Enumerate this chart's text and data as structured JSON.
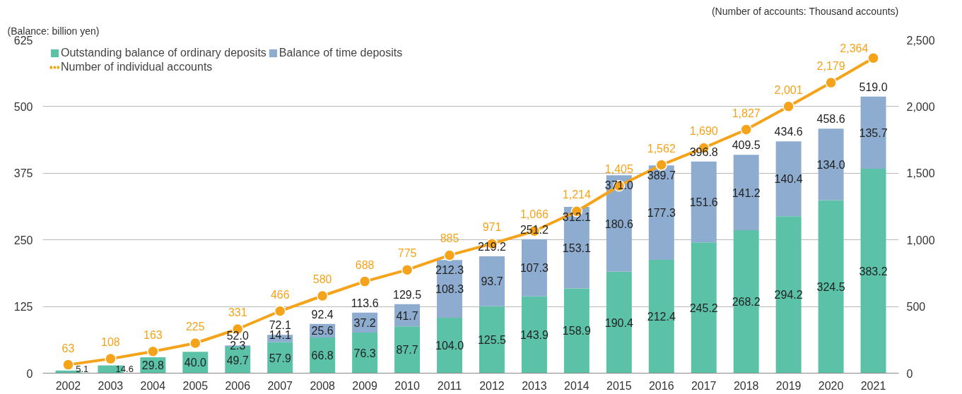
{
  "chart_data": {
    "type": "bar",
    "stacked": true,
    "categories": [
      "2002",
      "2003",
      "2004",
      "2005",
      "2006",
      "2007",
      "2008",
      "2009",
      "2010",
      "2011",
      "2012",
      "2013",
      "2014",
      "2015",
      "2016",
      "2017",
      "2018",
      "2019",
      "2020",
      "2021"
    ],
    "series": [
      {
        "name": "Outstanding balance of ordinary deposits",
        "color": "#5bc2a8",
        "values": [
          5.1,
          14.6,
          29.8,
          40.0,
          49.7,
          57.9,
          66.8,
          76.3,
          87.7,
          104.0,
          125.5,
          143.9,
          158.9,
          190.4,
          212.4,
          245.2,
          268.2,
          294.2,
          324.5,
          383.2
        ],
        "value_labels": [
          "5.1",
          "14.6",
          "29.8",
          "40.0",
          "49.7",
          "57.9",
          "66.8",
          "76.3",
          "87.7",
          "104.0",
          "125.5",
          "143.9",
          "158.9",
          "190.4",
          "212.4",
          "245.2",
          "268.2",
          "294.2",
          "324.5",
          "383.2"
        ]
      },
      {
        "name": "Balance of time deposits",
        "color": "#8eaccf",
        "values": [
          null,
          null,
          null,
          null,
          2.3,
          14.1,
          25.6,
          37.2,
          41.7,
          108.3,
          93.7,
          107.3,
          153.1,
          180.6,
          177.3,
          151.6,
          141.2,
          140.4,
          134.0,
          135.7
        ],
        "value_labels": [
          null,
          null,
          null,
          null,
          "2.3",
          "14.1",
          "25.6",
          "37.2",
          "41.7",
          "108.3",
          "93.7",
          "107.3",
          "153.1",
          "180.6",
          "177.3",
          "151.6",
          "141.2",
          "140.4",
          "134.0",
          "135.7"
        ]
      },
      {
        "name": "Number of individual accounts",
        "type": "line",
        "axis": "y2",
        "color": "#f5a31a",
        "marker": "circle",
        "values": [
          63,
          108,
          163,
          225,
          331,
          466,
          580,
          688,
          775,
          885,
          971,
          1066,
          1214,
          1405,
          1562,
          1690,
          1827,
          2001,
          2179,
          2364
        ],
        "value_labels": [
          "63",
          "108",
          "163",
          "225",
          "331",
          "466",
          "580",
          "688",
          "775",
          "885",
          "971",
          "1,066",
          "1,214",
          "1,405",
          "1,562",
          "1,690",
          "1,827",
          "2,001",
          "2,179",
          "2,364"
        ]
      }
    ],
    "totals": [
      null,
      null,
      null,
      null,
      "52.0",
      "72.1",
      "92.4",
      "113.6",
      "129.5",
      "212.3",
      "219.2",
      "251.2",
      "312.1",
      "371.0",
      "389.7",
      "396.8",
      "409.5",
      "434.6",
      "458.6",
      "519.0"
    ],
    "ylim": [
      0,
      625
    ],
    "yticks": [
      0,
      125,
      250,
      375,
      500,
      625
    ],
    "y2lim": [
      0,
      2500
    ],
    "y2ticks": [
      0,
      500,
      {
        "value": 1000,
        "label": "1,000"
      },
      {
        "value": 1500,
        "label": "1,500"
      },
      {
        "value": 2000,
        "label": "2,000"
      },
      {
        "value": 2500,
        "label": "2,500"
      }
    ],
    "grid": "y",
    "legend": "top left",
    "annotations": [
      "(Balance: billion yen)",
      "(Number of accounts: Thousand accounts)"
    ]
  }
}
